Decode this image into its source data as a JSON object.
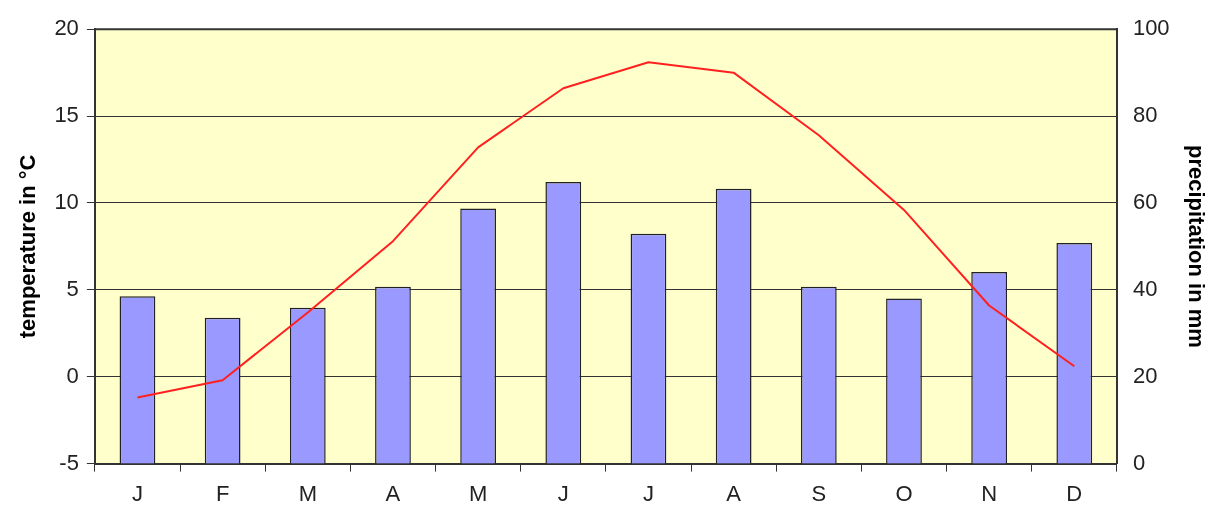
{
  "chart_data": {
    "type": "bar",
    "categories": [
      "J",
      "F",
      "M",
      "A",
      "M",
      "J",
      "J",
      "A",
      "S",
      "O",
      "N",
      "D"
    ],
    "series": [
      {
        "axis": "y2",
        "color": "#9999ff",
        "values": [
          38.5,
          33.6,
          35.9,
          40.7,
          58.7,
          64.8,
          52.9,
          63.3,
          40.7,
          38.0,
          44.1,
          50.8
        ]
      },
      {
        "type": "line",
        "axis": "y",
        "color": "#ff2020",
        "marker": "none",
        "values": [
          -1.2,
          -0.2,
          3.7,
          7.8,
          13.2,
          16.6,
          18.1,
          17.5,
          13.9,
          9.6,
          4.1,
          0.6
        ]
      }
    ],
    "ylabel": "temperature in °C",
    "y2label": "precipitation in mm",
    "ylim": [
      -5,
      20
    ],
    "yticks": [
      -5,
      0,
      5,
      10,
      15,
      20
    ],
    "y2lim": [
      0,
      100
    ],
    "y2ticks": [
      0,
      20,
      40,
      60,
      80,
      100
    ],
    "grid": "y",
    "legend": false
  }
}
